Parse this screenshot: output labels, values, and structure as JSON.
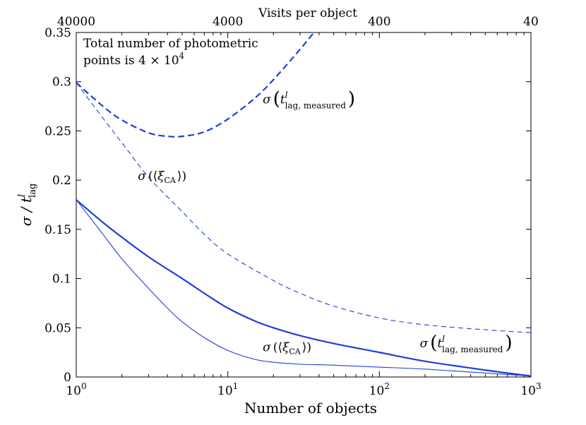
{
  "chart_data": {
    "type": "line",
    "xscale": "log",
    "xlim": [
      1,
      1000
    ],
    "ylim": [
      0,
      0.35
    ],
    "xlabel": "Number of objects",
    "ylabel": "σ / t",
    "ylabel_sup": "l",
    "ylabel_sub": "lag",
    "top_axis_label": "Visits per object",
    "x_ticks": [
      {
        "value": 1,
        "base": "10",
        "exp": "0"
      },
      {
        "value": 10,
        "base": "10",
        "exp": "1"
      },
      {
        "value": 100,
        "base": "10",
        "exp": "2"
      },
      {
        "value": 1000,
        "base": "10",
        "exp": "3"
      }
    ],
    "top_ticks": [
      {
        "x": 1,
        "label": "40000"
      },
      {
        "x": 10,
        "label": "4000"
      },
      {
        "x": 100,
        "label": "400"
      },
      {
        "x": 1000,
        "label": "40"
      }
    ],
    "y_ticks": [
      "0",
      "0.05",
      "0.1",
      "0.15",
      "0.2",
      "0.25",
      "0.3",
      "0.35"
    ],
    "annotation": {
      "line1": "Total number of photometric",
      "line2": "points is 4 × 10",
      "line2_sup": "4"
    },
    "series": [
      {
        "name": "σ(t_lag,measured) dashed",
        "style": "dashed",
        "weight": "thick",
        "color": "#1f3fd9",
        "points": [
          [
            1,
            0.299
          ],
          [
            1.5,
            0.275
          ],
          [
            2,
            0.261
          ],
          [
            3,
            0.248
          ],
          [
            4,
            0.2445
          ],
          [
            5,
            0.2445
          ],
          [
            7,
            0.249
          ],
          [
            10,
            0.262
          ],
          [
            15,
            0.283
          ],
          [
            20,
            0.302
          ],
          [
            30,
            0.333
          ],
          [
            37,
            0.35
          ]
        ]
      },
      {
        "name": "σ(⟨ξCA⟩) dashed",
        "style": "dashed",
        "weight": "thin",
        "color": "#1f3fd9",
        "points": [
          [
            1,
            0.299
          ],
          [
            1.5,
            0.263
          ],
          [
            2,
            0.238
          ],
          [
            3,
            0.203
          ],
          [
            5,
            0.168
          ],
          [
            7,
            0.145
          ],
          [
            10,
            0.125
          ],
          [
            20,
            0.098
          ],
          [
            30,
            0.085
          ],
          [
            50,
            0.072
          ],
          [
            100,
            0.06
          ],
          [
            200,
            0.053
          ],
          [
            500,
            0.048
          ],
          [
            1000,
            0.045
          ]
        ]
      },
      {
        "name": "σ(t_lag,measured) solid",
        "style": "solid",
        "weight": "thick",
        "color": "#1f3fd9",
        "points": [
          [
            1,
            0.18
          ],
          [
            1.5,
            0.157
          ],
          [
            2,
            0.142
          ],
          [
            3,
            0.122
          ],
          [
            5,
            0.1
          ],
          [
            7,
            0.085
          ],
          [
            10,
            0.07
          ],
          [
            15,
            0.057
          ],
          [
            20,
            0.05
          ],
          [
            30,
            0.042
          ],
          [
            50,
            0.034
          ],
          [
            100,
            0.025
          ],
          [
            200,
            0.016
          ],
          [
            500,
            0.007
          ],
          [
            1000,
            0.001
          ]
        ]
      },
      {
        "name": "σ(⟨ξCA⟩) solid",
        "style": "solid",
        "weight": "thin",
        "color": "#1f3fd9",
        "points": [
          [
            1,
            0.18
          ],
          [
            1.5,
            0.145
          ],
          [
            2,
            0.12
          ],
          [
            3,
            0.09
          ],
          [
            4,
            0.07
          ],
          [
            5,
            0.056
          ],
          [
            7,
            0.04
          ],
          [
            10,
            0.027
          ],
          [
            15,
            0.018
          ],
          [
            20,
            0.015
          ],
          [
            30,
            0.013
          ],
          [
            50,
            0.012
          ],
          [
            100,
            0.01
          ],
          [
            200,
            0.008
          ],
          [
            500,
            0.004
          ],
          [
            1000,
            0.001
          ]
        ]
      }
    ],
    "curve_labels": [
      {
        "id": "lbl-top-dashed",
        "sigma": "σ",
        "t": "t",
        "sup": "l",
        "sub": "lag, measured",
        "x": 17,
        "y": 0.278
      },
      {
        "id": "lbl-thin-dashed",
        "sigma": "σ",
        "open": "(⟨",
        "xi": "ξ",
        "sub": "CA",
        "close": "⟩)",
        "x": 2.55,
        "y": 0.2
      },
      {
        "id": "lbl-thin-solid",
        "sigma": "σ",
        "open": "(⟨",
        "xi": "ξ",
        "sub": "CA",
        "close": "⟩)",
        "x": 17,
        "y": 0.026
      },
      {
        "id": "lbl-thick-solid",
        "sigma": "σ",
        "t": "t",
        "sup": "l",
        "sub": "lag, measured",
        "x": 185,
        "y": 0.03
      }
    ]
  }
}
